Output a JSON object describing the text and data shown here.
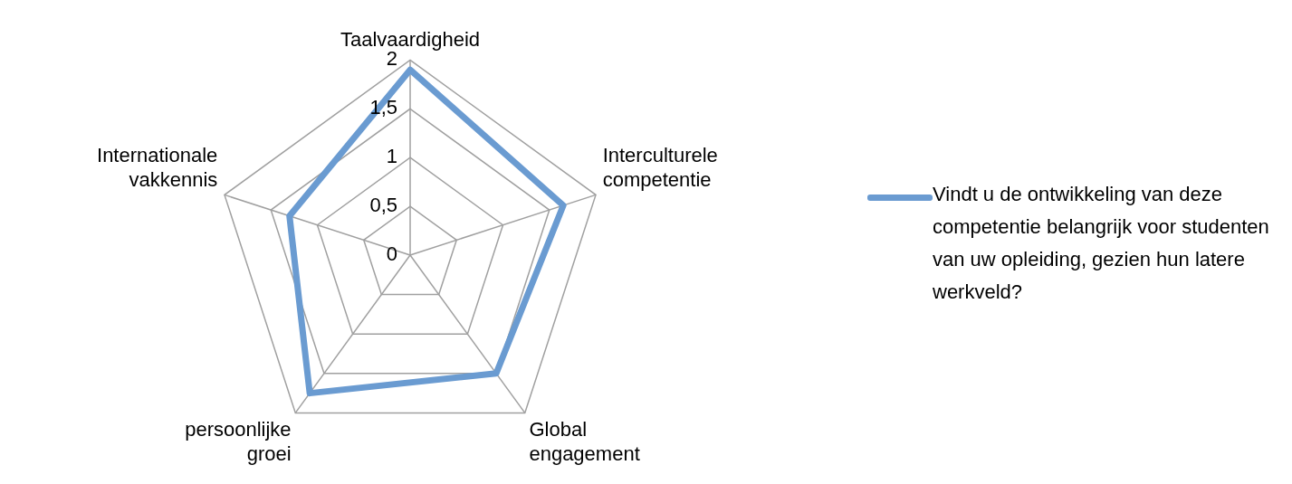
{
  "chart_data": {
    "type": "radar",
    "categories": [
      "Taalvaardigheid",
      "Interculturele competentie",
      "Global engagement",
      "persoonlijke groei",
      "Internationale vakkennis"
    ],
    "series": [
      {
        "name": "Vindt u  de ontwikkeling van deze competentie belangrijk voor studenten van uw opleiding, gezien hun latere werkveld?",
        "color": "#6a9bd1",
        "values": [
          1.9,
          1.65,
          1.5,
          1.75,
          1.3
        ]
      }
    ],
    "ylim": [
      0,
      2
    ],
    "yticks": [
      {
        "value": 0,
        "label": "0"
      },
      {
        "value": 0.5,
        "label": "0,5"
      },
      {
        "value": 1,
        "label": "1"
      },
      {
        "value": 1.5,
        "label": "1,5"
      },
      {
        "value": 2,
        "label": "2"
      }
    ],
    "grid": true,
    "legend": "right",
    "marker": "none"
  }
}
